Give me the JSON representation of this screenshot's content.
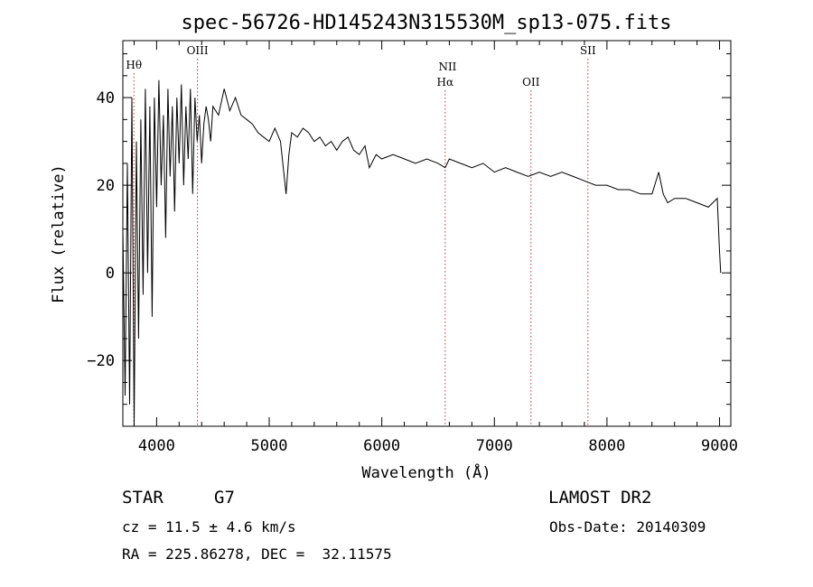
{
  "chart_data": {
    "type": "line",
    "title": "spec-56726-HD145243N315530M_sp13-075.fits",
    "xlabel": "Wavelength (Å)",
    "ylabel": "Flux (relative)",
    "xlim": [
      3700,
      9100
    ],
    "ylim": [
      -35,
      53
    ],
    "xticks": [
      4000,
      5000,
      6000,
      7000,
      8000,
      9000
    ],
    "yticks": [
      -20,
      0,
      20,
      40
    ],
    "grid": false,
    "lines": [
      {
        "label": "Hθ",
        "x": 3798
      },
      {
        "label": "OIII",
        "x": 4363
      },
      {
        "label": "NII",
        "x": 6584
      },
      {
        "label": "Hα",
        "x": 6563
      },
      {
        "label": "OII",
        "x": 7325
      },
      {
        "label": "SII",
        "x": 7831
      }
    ],
    "series": [
      {
        "x": [
          3700,
          3720,
          3740,
          3760,
          3780,
          3800,
          3820,
          3840,
          3860,
          3880,
          3900,
          3920,
          3940,
          3960,
          3980,
          4000,
          4020,
          4040,
          4060,
          4080,
          4100,
          4120,
          4140,
          4160,
          4180,
          4200,
          4220,
          4240,
          4260,
          4280,
          4300,
          4320,
          4340,
          4360,
          4380,
          4400,
          4420,
          4440,
          4460,
          4480,
          4500,
          4550,
          4600,
          4650,
          4700,
          4750,
          4800,
          4850,
          4900,
          4950,
          5000,
          5050,
          5100,
          5150,
          5175,
          5200,
          5250,
          5300,
          5350,
          5400,
          5450,
          5500,
          5550,
          5600,
          5650,
          5700,
          5750,
          5800,
          5850,
          5890,
          5950,
          6000,
          6100,
          6200,
          6300,
          6400,
          6500,
          6563,
          6600,
          6700,
          6800,
          6900,
          7000,
          7100,
          7200,
          7300,
          7400,
          7500,
          7600,
          7700,
          7800,
          7900,
          8000,
          8100,
          8200,
          8300,
          8400,
          8460,
          8500,
          8540,
          8600,
          8700,
          8800,
          8900,
          8980,
          9000,
          9010
        ],
        "values": [
          10,
          -28,
          25,
          -30,
          40,
          -35,
          30,
          -15,
          35,
          -5,
          42,
          0,
          38,
          -10,
          40,
          15,
          44,
          20,
          36,
          8,
          42,
          22,
          38,
          14,
          40,
          25,
          43,
          20,
          38,
          26,
          42,
          18,
          40,
          30,
          36,
          25,
          34,
          38,
          35,
          30,
          38,
          36,
          42,
          37,
          40,
          36,
          35,
          34,
          32,
          31,
          30,
          33,
          30,
          18,
          27,
          32,
          31,
          33,
          32,
          30,
          31,
          29,
          30,
          28,
          30,
          31,
          28,
          27,
          29,
          24,
          27,
          26,
          27,
          26,
          25,
          26,
          25,
          24,
          26,
          25,
          24,
          25,
          23,
          24,
          23,
          22,
          23,
          22,
          23,
          22,
          21,
          20,
          20,
          19,
          19,
          18,
          18,
          23,
          18,
          16,
          17,
          17,
          16,
          15,
          17,
          5,
          0
        ]
      }
    ]
  },
  "footer": {
    "object_class": "STAR",
    "subclass": "G7",
    "survey": "LAMOST DR2",
    "cz": "cz = 11.5 ± 4.6 km/s",
    "obs_date": "Obs-Date: 20140309",
    "coords": "RA = 225.86278, DEC =  32.11575"
  }
}
